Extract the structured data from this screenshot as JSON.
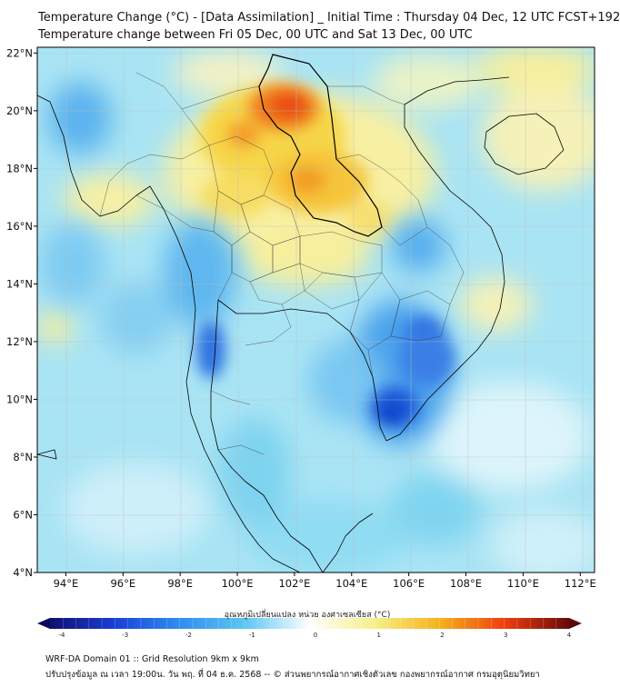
{
  "header": {
    "title_line1": "Temperature Change (°C) - [Data Assimilation] _ Initial Time : Thursday 04 Dec, 12 UTC FCST+192",
    "title_line2": "Temperature change between Fri 05 Dec, 00 UTC and Sat 13 Dec, 00 UTC"
  },
  "map": {
    "lon_labels": [
      "94°E",
      "96°E",
      "98°E",
      "100°E",
      "102°E",
      "104°E",
      "106°E",
      "108°E",
      "110°E",
      "112°E"
    ],
    "lat_labels": [
      "22°N",
      "20°N",
      "18°N",
      "16°N",
      "14°N",
      "12°N",
      "10°N",
      "8°N",
      "6°N",
      "4°N"
    ],
    "lon_range": [
      93,
      112.5
    ],
    "lat_range": [
      4,
      22.2
    ],
    "colors": {
      "ocean_base": "#a9e4f4",
      "warm_light": "#f7f0a3",
      "warm_medium": "#f6c53a",
      "hot": "#ee5a14",
      "cold_medium": "#4ea6ee",
      "cold_strong": "#1652d9",
      "boundary": "#000000"
    }
  },
  "colorbar": {
    "title": "อุณหภูมิเปลี่ยนแปลง หน่วย องศาเซลเซียส (°C)",
    "ticks": [
      "-4",
      "-3",
      "-2",
      "-1",
      "0",
      "1",
      "2",
      "3",
      "4"
    ],
    "range": [
      -4,
      4
    ],
    "stops": [
      "#10106e",
      "#1a3fd6",
      "#2f8ef0",
      "#5cc6f2",
      "#ffffff",
      "#f7ef8a",
      "#f6b21c",
      "#ee3f10",
      "#6a0a0a"
    ]
  },
  "footer": {
    "line1": "WRF-DA Domain 01 :: Grid Resolution 9km x 9km",
    "line2": "ปรับปรุงข้อมูล ณ เวลา 19:00น. วัน พฤ. ที่ 04 ธ.ค. 2568 -- © ส่วนพยากรณ์อากาศเชิงตัวเลข กองพยากรณ์อากาศ กรมอุตุนิยมวิทยา"
  }
}
